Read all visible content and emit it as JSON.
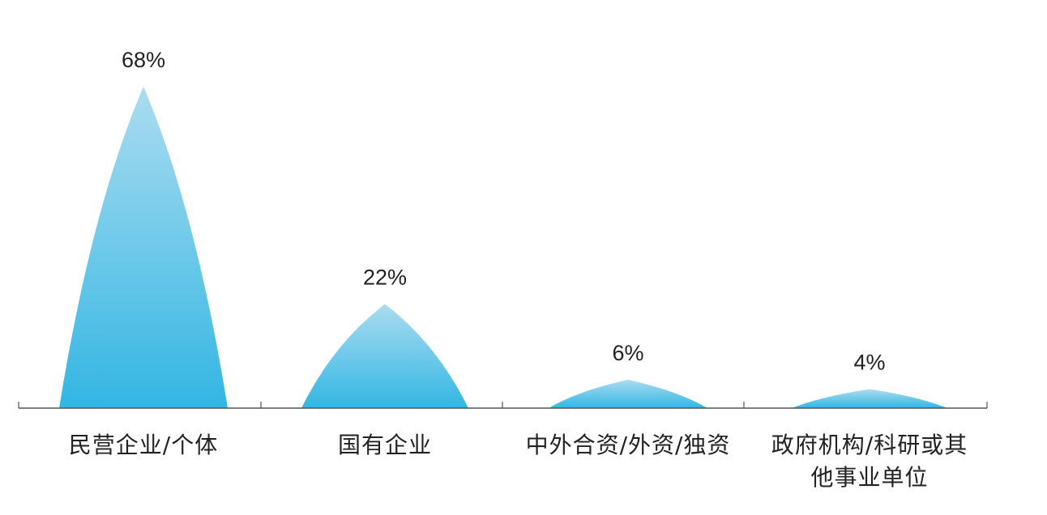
{
  "chart_data": {
    "type": "bar",
    "shape": "triangle",
    "categories": [
      "民营企业/个体",
      "国有企业",
      "中外合资/外资/独资",
      "政府机构/科研或其他事业单位"
    ],
    "category_lines": [
      [
        "民营企业/个体"
      ],
      [
        "国有企业"
      ],
      [
        "中外合资/外资/独资"
      ],
      [
        "政府机构/科研或其",
        "他事业单位"
      ]
    ],
    "values": [
      68,
      22,
      6,
      4
    ],
    "data_labels": [
      "68%",
      "22%",
      "6%",
      "4%"
    ],
    "unit": "%",
    "ylim": [
      0,
      68
    ],
    "grid": false,
    "legend": "none",
    "colors": {
      "top": "#aadcf0",
      "bottom": "#33b6e3",
      "axis": "#555555",
      "text": "#222222"
    }
  }
}
